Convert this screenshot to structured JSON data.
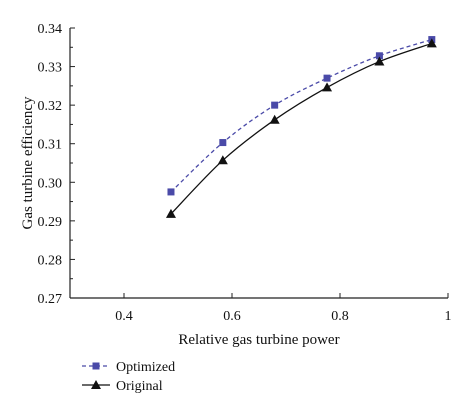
{
  "chart_data": {
    "type": "line",
    "xlabel": "Relative gas turbine power",
    "ylabel": "Gas turbine efficiency",
    "xlim": [
      0.3,
      1.0
    ],
    "ylim": [
      0.27,
      0.34
    ],
    "xticks": [
      0.4,
      0.6,
      0.8,
      1.0
    ],
    "xtick_labels": [
      "0.4",
      "0.6",
      "0.8",
      "1"
    ],
    "yticks": [
      0.27,
      0.28,
      0.29,
      0.3,
      0.31,
      0.32,
      0.33,
      0.34
    ],
    "ytick_labels": [
      "0.27",
      "0.28",
      "0.29",
      "0.30",
      "0.31",
      "0.32",
      "0.33",
      "0.34"
    ],
    "grid": false,
    "legend_position": "bottom-left, below plot",
    "series": [
      {
        "name": "Optimized",
        "marker": "square",
        "line_style": "dashed",
        "color": "#4a4aa8",
        "x": [
          0.487,
          0.583,
          0.679,
          0.776,
          0.873,
          0.97
        ],
        "y": [
          0.2975,
          0.3103,
          0.32,
          0.327,
          0.3328,
          0.337
        ]
      },
      {
        "name": "Original",
        "marker": "triangle",
        "line_style": "solid",
        "color": "#111111",
        "x": [
          0.487,
          0.583,
          0.679,
          0.776,
          0.873,
          0.97
        ],
        "y": [
          0.2918,
          0.3057,
          0.3162,
          0.3246,
          0.3313,
          0.336
        ]
      }
    ]
  }
}
